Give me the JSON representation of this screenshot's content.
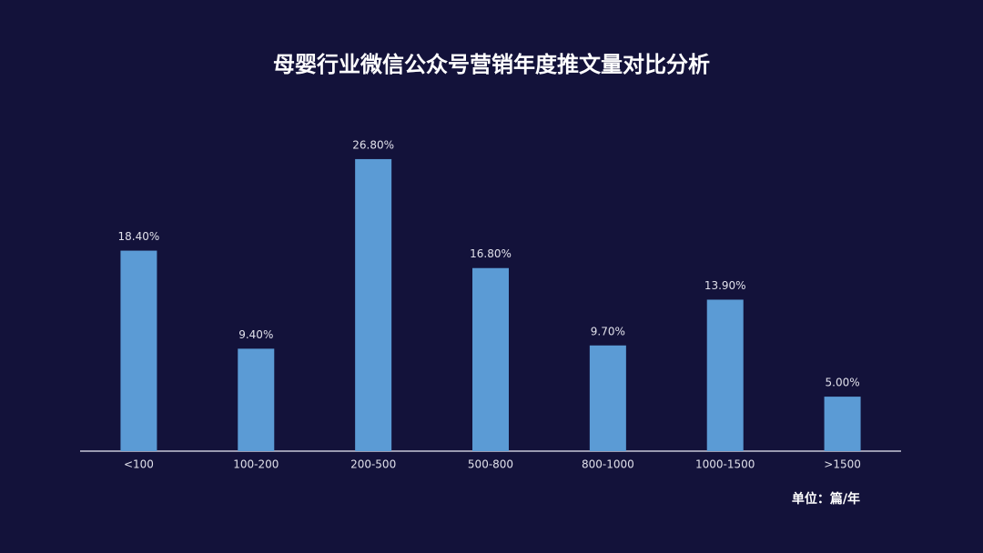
{
  "chart_data": {
    "type": "bar",
    "title": "母婴行业微信公众号营销年度推文量对比分析",
    "categories": [
      "<100",
      "100-200",
      "200-500",
      "500-800",
      "800-1000",
      "1000-1500",
      ">1500"
    ],
    "values": [
      18.4,
      9.4,
      26.8,
      16.8,
      9.7,
      13.9,
      5.0
    ],
    "value_labels": [
      "18.40%",
      "9.40%",
      "26.80%",
      "16.80%",
      "9.70%",
      "13.90%",
      "5.00%"
    ],
    "color": "#5b9bd5",
    "unit_note": "单位：篇/年"
  }
}
